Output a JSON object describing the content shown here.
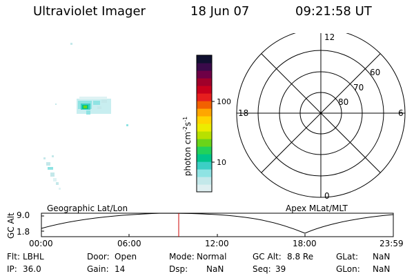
{
  "header": {
    "title": "Ultraviolet Imager",
    "date": "18 Jun 07",
    "time": "09:21:58 UT"
  },
  "colorbar": {
    "unit_label": "photon cm",
    "unit_exp1": "-2",
    "unit_s": "s",
    "unit_exp2": "-1",
    "tick_100": "100",
    "tick_10": "10",
    "colors": [
      "#dfeff1",
      "#c4e8ea",
      "#8fe3e3",
      "#3ccfc5",
      "#00c48a",
      "#22d15a",
      "#6ad419",
      "#b8e000",
      "#ecec00",
      "#ffd400",
      "#ffa600",
      "#f26100",
      "#e61e1e",
      "#c8001c",
      "#a0002a",
      "#6e0046",
      "#3a0a4a",
      "#101030"
    ],
    "palette_note": "cyan-green-yellow-orange-red-black"
  },
  "polar": {
    "mlt_top": "12",
    "mlt_left": "18",
    "mlt_right": "6",
    "mlt_bottom": "0",
    "lat_60": "60",
    "lat_70": "70",
    "lat_80": "80"
  },
  "orbit": {
    "left_title": "Geographic Lat/Lon",
    "right_title": "Apex MLat/MLT",
    "ylabel": "GC Alt",
    "y_top": "9.0",
    "y_bottom": "1.8",
    "x_ticks": [
      "00:00",
      "06:00",
      "12:00",
      "18:00",
      "23:59"
    ],
    "marker_color": "#cc0000"
  },
  "info": {
    "flt_label": "Flt:",
    "flt_value": "LBHL",
    "door_label": "Door:",
    "door_value": "Open",
    "mode_label": "Mode:",
    "mode_value": "Normal",
    "gcalt_label": "GC Alt:",
    "gcalt_value": "8.8 Re",
    "glat_label": "GLat:",
    "glat_value": "NaN",
    "ip_label": "IP:",
    "ip_value": "36.0",
    "gain_label": "Gain:",
    "gain_value": "14",
    "dsp_label": "Dsp:",
    "dsp_value": "NaN",
    "seq_label": "Seq:",
    "seq_value": "39",
    "glon_label": "GLon:",
    "glon_value": "NaN"
  }
}
